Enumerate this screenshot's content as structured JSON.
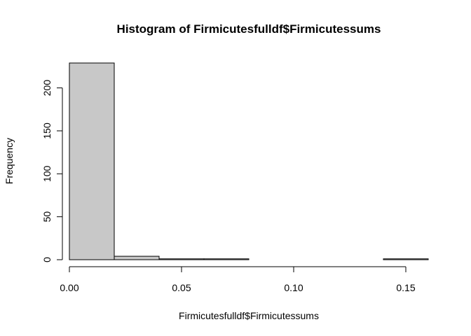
{
  "chart_data": {
    "type": "bar",
    "title": "Histogram of Firmicutesfulldf$Firmicutessums",
    "xlabel": "Firmicutesfulldf$Firmicutessums",
    "ylabel": "Frequency",
    "bins": [
      {
        "start": 0.0,
        "end": 0.02,
        "count": 229
      },
      {
        "start": 0.02,
        "end": 0.04,
        "count": 4
      },
      {
        "start": 0.04,
        "end": 0.06,
        "count": 1
      },
      {
        "start": 0.06,
        "end": 0.08,
        "count": 1
      },
      {
        "start": 0.08,
        "end": 0.1,
        "count": 0
      },
      {
        "start": 0.1,
        "end": 0.12,
        "count": 0
      },
      {
        "start": 0.12,
        "end": 0.14,
        "count": 0
      },
      {
        "start": 0.14,
        "end": 0.16,
        "count": 1
      }
    ],
    "xlim": [
      0,
      0.16
    ],
    "ylim": [
      0,
      229
    ],
    "x_ticks": [
      {
        "value": 0.0,
        "label": "0.00"
      },
      {
        "value": 0.05,
        "label": "0.05"
      },
      {
        "value": 0.1,
        "label": "0.10"
      },
      {
        "value": 0.15,
        "label": "0.15"
      }
    ],
    "y_ticks": [
      {
        "value": 0,
        "label": "0"
      },
      {
        "value": 50,
        "label": "50"
      },
      {
        "value": 100,
        "label": "100"
      },
      {
        "value": 150,
        "label": "150"
      },
      {
        "value": 200,
        "label": "200"
      }
    ],
    "bar_fill": "#c8c8c8",
    "bar_stroke": "#000000",
    "grid": false
  }
}
